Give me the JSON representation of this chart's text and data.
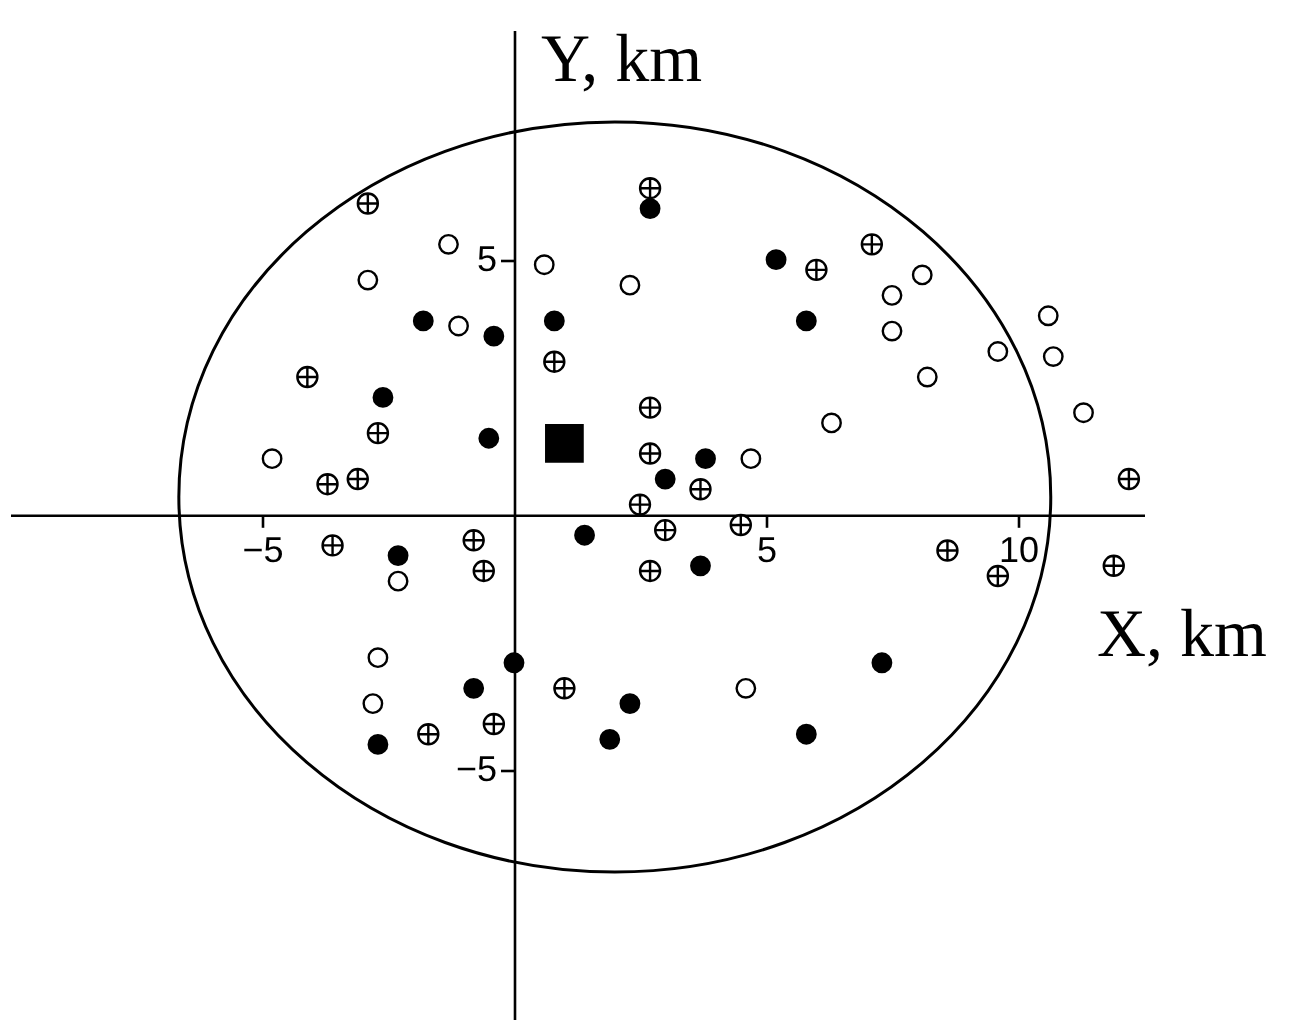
{
  "chart_data": {
    "type": "scatter",
    "xlabel": "X, km",
    "ylabel": "Y, km",
    "xlim": [
      -10,
      12.5
    ],
    "ylim": [
      -9.9,
      9.5
    ],
    "xticks": [
      -5,
      5,
      10
    ],
    "yticks": [
      -5,
      5
    ],
    "grid": false,
    "series": [
      {
        "color": "#000000",
        "marker": "circle",
        "x": [
          2.7,
          5.2,
          5.8,
          -1.8,
          0.8,
          -0.4,
          -2.6,
          -0.5,
          3.8,
          3.0,
          1.4,
          -2.3,
          3.7,
          0.0,
          -0.8,
          2.3,
          1.9,
          -2.7,
          5.8,
          7.3
        ],
        "values": [
          6.0,
          5.0,
          3.8,
          3.8,
          3.8,
          3.5,
          2.3,
          1.5,
          1.1,
          0.7,
          -0.4,
          -0.8,
          -1.0,
          -2.9,
          -3.4,
          -3.7,
          -4.4,
          -4.5,
          -4.3,
          -2.9
        ]
      },
      {
        "color": "#ffffff",
        "marker": "circle",
        "x": [
          -1.3,
          -2.9,
          -1.1,
          0.6,
          2.3,
          8.1,
          7.5,
          7.5,
          10.6,
          10.7,
          9.6,
          8.2,
          11.3,
          6.3,
          -4.8,
          4.7,
          -2.3,
          -2.7,
          -2.8,
          4.6
        ],
        "values": [
          5.3,
          4.6,
          3.7,
          4.9,
          4.5,
          4.7,
          4.3,
          3.6,
          3.9,
          3.1,
          3.2,
          2.7,
          2.0,
          1.8,
          1.1,
          1.1,
          -1.3,
          -2.8,
          -3.7,
          -3.4
        ]
      },
      {
        "color": "#ffffff",
        "marker": "cross",
        "x": [
          -2.9,
          2.7,
          7.1,
          6.0,
          0.8,
          -4.1,
          2.7,
          -2.7,
          2.7,
          -3.1,
          -3.7,
          3.7,
          2.5,
          12.2,
          -3.6,
          -0.8,
          3.0,
          4.5,
          -0.6,
          2.7,
          8.6,
          9.6,
          11.9,
          1.0,
          -1.7,
          -0.4
        ],
        "values": [
          6.1,
          6.4,
          5.3,
          4.8,
          3.0,
          2.7,
          2.1,
          1.6,
          1.2,
          0.7,
          0.6,
          0.5,
          0.2,
          0.7,
          -0.6,
          -0.5,
          -0.3,
          -0.2,
          -1.1,
          -1.1,
          -0.7,
          -1.2,
          -1.0,
          -3.4,
          -4.3,
          -4.1
        ]
      },
      {
        "color": "#000000",
        "marker": "square",
        "x": [
          1.0
        ],
        "values": [
          1.4
        ]
      }
    ]
  }
}
